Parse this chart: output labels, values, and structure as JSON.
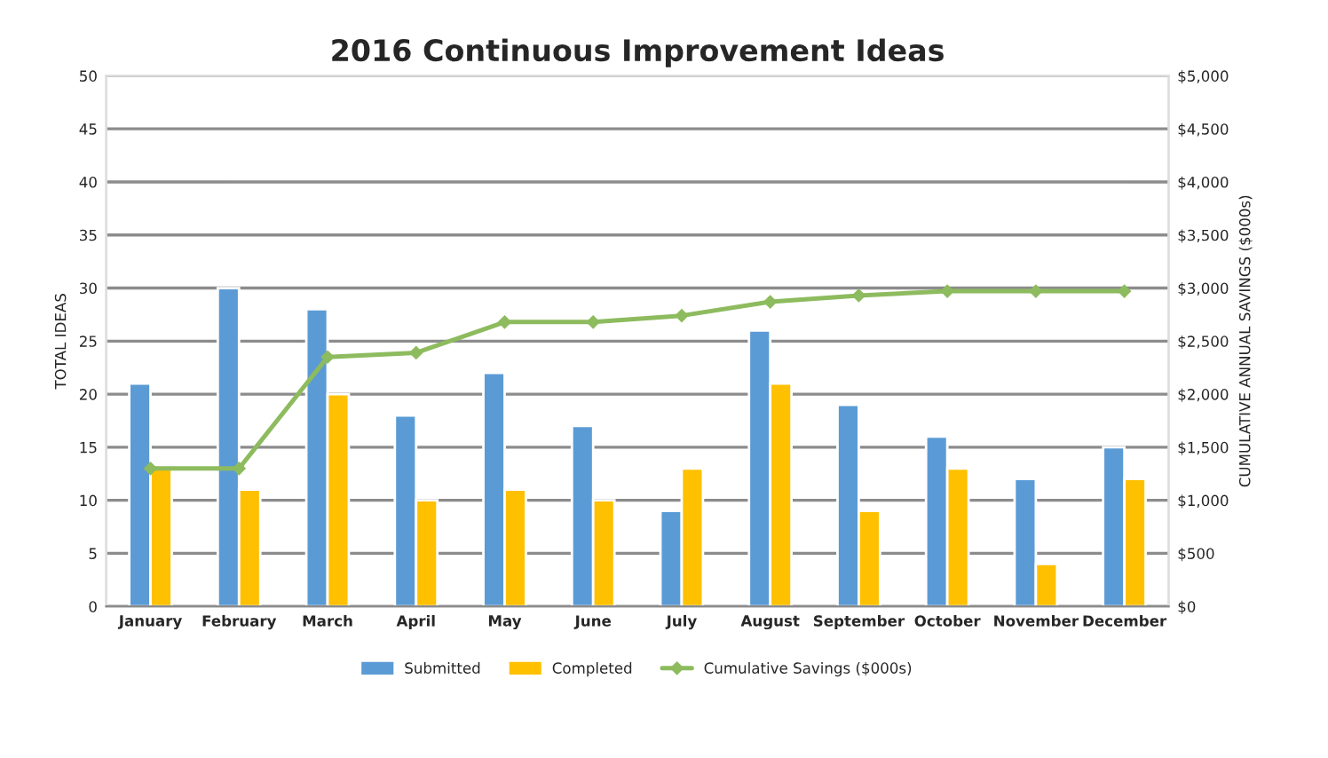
{
  "chart_data": {
    "type": "bar",
    "title": "2016 Continuous Improvement Ideas",
    "categories": [
      "January",
      "February",
      "March",
      "April",
      "May",
      "June",
      "July",
      "August",
      "September",
      "October",
      "November",
      "December"
    ],
    "series": [
      {
        "name": "Submitted",
        "color": "#5b9bd5",
        "values": [
          21,
          30,
          28,
          18,
          22,
          17,
          9,
          26,
          19,
          16,
          12,
          15
        ]
      },
      {
        "name": "Completed",
        "color": "#ffc000",
        "values": [
          13,
          11,
          20,
          10,
          11,
          10,
          13,
          21,
          9,
          13,
          4,
          12
        ]
      },
      {
        "name": "Cumulative Savings ($000s)",
        "type": "line",
        "axis": "y2",
        "color": "#8dbb5e",
        "marker": "diamond",
        "values": [
          1300,
          1300,
          2350,
          2390,
          2680,
          2680,
          2740,
          2870,
          2930,
          2970,
          2970,
          2970
        ]
      }
    ],
    "ylabel": "TOTAL IDEAS",
    "y2label": "CUMULATIVE ANNUAL SAVINGS ($000s)",
    "ylim": [
      0,
      50
    ],
    "yticks": [
      0,
      5,
      10,
      15,
      20,
      25,
      30,
      35,
      40,
      45,
      50
    ],
    "y2lim": [
      0,
      5000
    ],
    "y2ticks": [
      {
        "value": 0,
        "label": "$0"
      },
      {
        "value": 500,
        "label": "$500"
      },
      {
        "value": 1000,
        "label": "$1,000"
      },
      {
        "value": 1500,
        "label": "$1,500"
      },
      {
        "value": 2000,
        "label": "$2,000"
      },
      {
        "value": 2500,
        "label": "$2,500"
      },
      {
        "value": 3000,
        "label": "$3,000"
      },
      {
        "value": 3500,
        "label": "$3,500"
      },
      {
        "value": 4000,
        "label": "$4,000"
      },
      {
        "value": 4500,
        "label": "$4,500"
      },
      {
        "value": 5000,
        "label": "$5,000"
      }
    ],
    "grid": "y",
    "legend": "bottom"
  }
}
